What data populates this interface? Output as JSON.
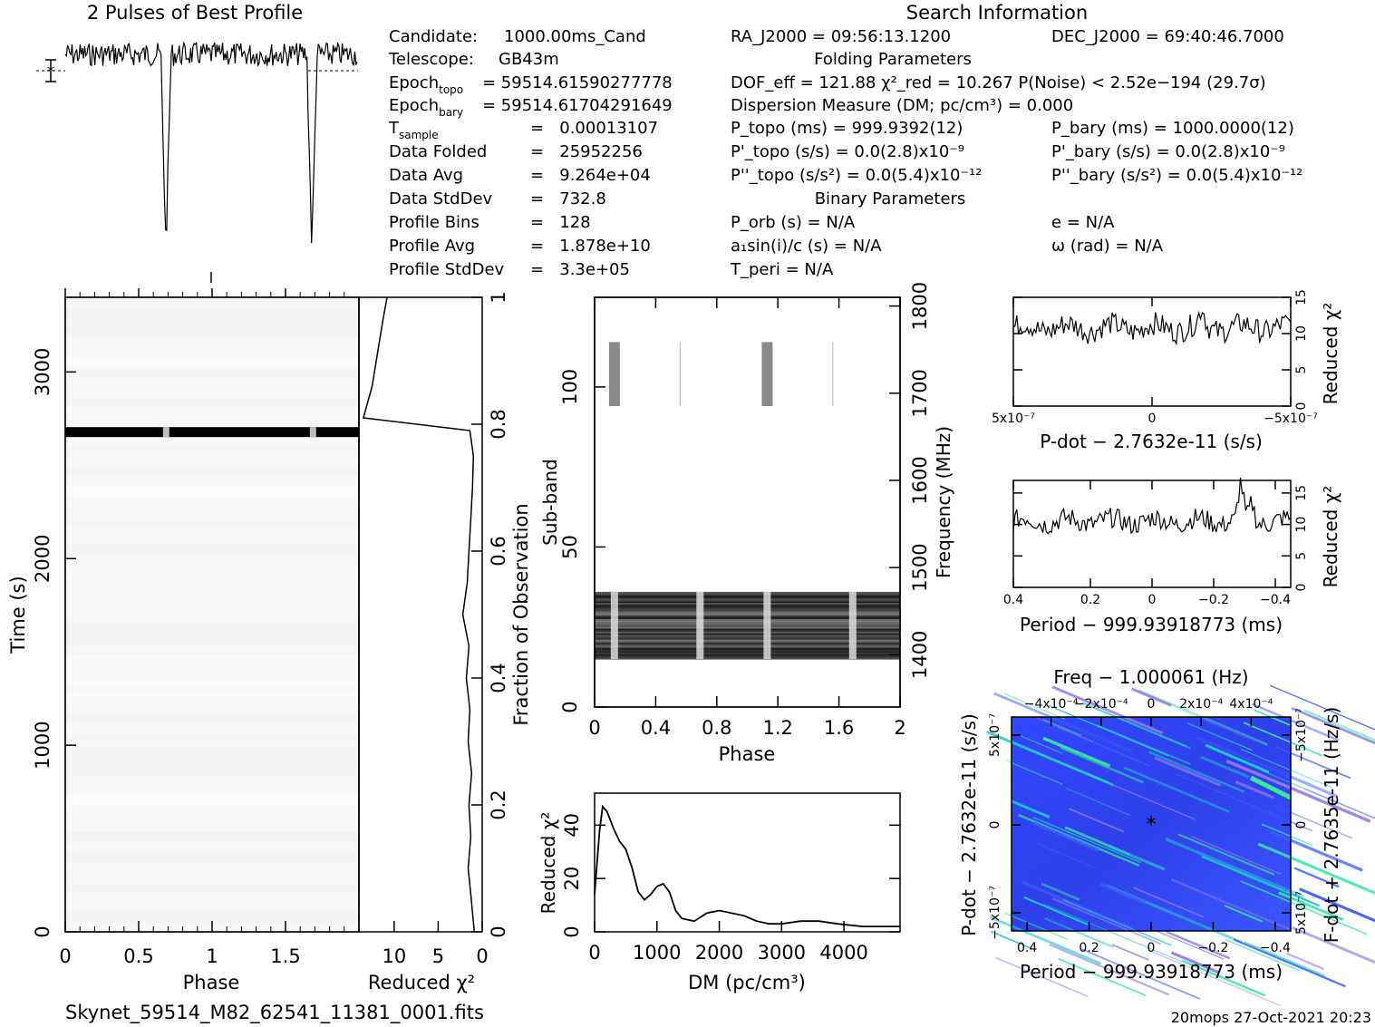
{
  "header": {
    "profile_title": "2 Pulses of Best Profile",
    "search_title": "Search Information",
    "filename": "Skynet_59514_M82_62541_11381_0001.fits",
    "footer": "20mops 27-Oct-2021 20:23"
  },
  "info_left": [
    {
      "label": "Candidate:",
      "value": "1000.00ms_Cand"
    },
    {
      "label": "Telescope:",
      "value": "GB43m"
    },
    {
      "label": "Epoch",
      "sub": "topo",
      "value": "= 59514.61590277778"
    },
    {
      "label": "Epoch",
      "sub": "bary",
      "value": "= 59514.61704291649"
    },
    {
      "label": "T",
      "sub": "sample",
      "value": "=   0.00013107"
    },
    {
      "label": "Data Folded",
      "value": "=   25952256"
    },
    {
      "label": "Data Avg",
      "value": "=   9.264e+04"
    },
    {
      "label": "Data StdDev",
      "value": "=   732.8"
    },
    {
      "label": "Profile Bins",
      "value": "=   128"
    },
    {
      "label": "Profile Avg",
      "value": "=   1.878e+10"
    },
    {
      "label": "Profile StdDev",
      "value": "=   3.3e+05"
    }
  ],
  "info_mid": {
    "ra": "RA_J2000 = 09:56:13.1200",
    "dec": "DEC_J2000 = 69:40:46.7000",
    "folding_title": "Folding Parameters",
    "dof": "DOF_eff = 121.88  χ²_red = 10.267  P(Noise) < 2.52e−194  (29.7σ)",
    "dm": "Dispersion Measure (DM; pc/cm³) = 0.000",
    "ptopo": "P_topo (ms) =  999.9392(12)",
    "pbary": "P_bary (ms) =  1000.0000(12)",
    "pdtopo": "P'_topo (s/s) = 0.0(2.8)x10⁻⁹",
    "pdbary": "P'_bary (s/s) = 0.0(2.8)x10⁻⁹",
    "pddtopo": "P''_topo (s/s²) = 0.0(5.4)x10⁻¹²",
    "pddbary": "P''_bary (s/s²) = 0.0(5.4)x10⁻¹²",
    "binary_title": "Binary Parameters",
    "porb": "P_orb (s) = N/A",
    "e": "e = N/A",
    "a1": "a₁sin(i)/c (s) = N/A",
    "omega": "ω (rad) = N/A",
    "tperi": "T_peri = N/A"
  },
  "chart_data": [
    {
      "type": "line",
      "id": "profile",
      "title": "2 Pulses of Best Profile",
      "xrange": [
        0,
        2
      ],
      "dip_phases": [
        0.69,
        1.69
      ],
      "note": "flat noisy baseline with two deep narrow dips"
    },
    {
      "type": "heatmap",
      "id": "time_phase",
      "xlabel": "Phase",
      "ylabel": "Time (s)",
      "xticks": [
        "0",
        "0.5",
        "1",
        "1.5"
      ],
      "yticks": [
        "0",
        "1000",
        "2000",
        "3000"
      ],
      "xlim": [
        0,
        2
      ],
      "ylim": [
        0,
        3400
      ],
      "bright_band_time": 2680
    },
    {
      "type": "line",
      "id": "time_redchi",
      "xlabel": "Reduced χ²",
      "ylabel": "Fraction of Observation",
      "xticks": [
        "10",
        "5",
        "0"
      ],
      "yticks": [
        "0",
        "0.2",
        "0.4",
        "0.6",
        "0.8",
        "1"
      ],
      "points": [
        [
          0.9,
          0.0
        ],
        [
          1.1,
          0.03
        ],
        [
          1.3,
          0.06
        ],
        [
          1.6,
          0.1
        ],
        [
          1.3,
          0.15
        ],
        [
          1.5,
          0.2
        ],
        [
          1.2,
          0.25
        ],
        [
          1.6,
          0.3
        ],
        [
          1.4,
          0.35
        ],
        [
          1.8,
          0.4
        ],
        [
          1.5,
          0.45
        ],
        [
          2.2,
          0.5
        ],
        [
          1.7,
          0.55
        ],
        [
          1.5,
          0.6
        ],
        [
          1.3,
          0.65
        ],
        [
          1.1,
          0.7
        ],
        [
          1.0,
          0.75
        ],
        [
          1.4,
          0.79
        ],
        [
          13.5,
          0.81
        ],
        [
          12.5,
          0.86
        ],
        [
          11.8,
          0.92
        ],
        [
          11.2,
          0.97
        ],
        [
          10.8,
          1.0
        ]
      ]
    },
    {
      "type": "heatmap",
      "id": "subband_phase",
      "xlabel": "Phase",
      "ylabel": "Sub-band",
      "y2label": "Frequency (MHz)",
      "xticks": [
        "0",
        "0.4",
        "0.8",
        "1.2",
        "1.6",
        "2"
      ],
      "yticks": [
        "0",
        "50",
        "100"
      ],
      "y2ticks": [
        "1400",
        "1500",
        "1600",
        "1700",
        "1800"
      ],
      "xlim": [
        0,
        2
      ],
      "ylim": [
        0,
        128
      ],
      "y2lim": [
        1340,
        1810
      ]
    },
    {
      "type": "line",
      "id": "dm_chi",
      "xlabel": "DM (pc/cm³)",
      "ylabel": "Reduced χ²",
      "xticks": [
        "0",
        "1000",
        "2000",
        "3000",
        "4000"
      ],
      "yticks": [
        "0",
        "20",
        "40"
      ],
      "xlim": [
        0,
        4900
      ],
      "ylim": [
        0,
        52
      ],
      "points": [
        [
          0,
          14
        ],
        [
          80,
          38
        ],
        [
          130,
          47
        ],
        [
          200,
          45
        ],
        [
          300,
          39
        ],
        [
          400,
          34
        ],
        [
          500,
          31
        ],
        [
          600,
          24
        ],
        [
          700,
          15
        ],
        [
          800,
          12
        ],
        [
          900,
          14
        ],
        [
          1000,
          17
        ],
        [
          1100,
          18
        ],
        [
          1200,
          15
        ],
        [
          1300,
          8
        ],
        [
          1400,
          5
        ],
        [
          1600,
          4
        ],
        [
          1800,
          7
        ],
        [
          2000,
          8
        ],
        [
          2200,
          7
        ],
        [
          2400,
          6
        ],
        [
          2600,
          4
        ],
        [
          2800,
          3
        ],
        [
          3000,
          3
        ],
        [
          3300,
          4
        ],
        [
          3600,
          4
        ],
        [
          3900,
          3
        ],
        [
          4300,
          2
        ],
        [
          4900,
          2
        ]
      ]
    },
    {
      "type": "line",
      "id": "pdot_chi",
      "xlabel": "P-dot − 2.7632e-11 (s/s)",
      "ylabel": "Reduced χ²",
      "xticks": [
        "5x10⁻⁷",
        "0",
        "−5x10⁻⁷"
      ],
      "yticks": [
        "0",
        "5",
        "10",
        "15"
      ],
      "ylim": [
        0,
        15
      ]
    },
    {
      "type": "line",
      "id": "period_chi",
      "xlabel": "Period − 999.93918773 (ms)",
      "ylabel": "Reduced χ²",
      "xticks": [
        "0.4",
        "0.2",
        "0",
        "−0.2",
        "−0.4"
      ],
      "yticks": [
        "0",
        "5",
        "10",
        "15"
      ],
      "ylim": [
        0,
        17
      ]
    },
    {
      "type": "heatmap",
      "id": "p_pdot",
      "title": "Freq − 1.000061 (Hz)",
      "xlabel": "Period − 999.93918773 (ms)",
      "ylabel": "P-dot − 2.7632e-11 (s/s)",
      "y2label": "F-dot + 2.7635e-11 (Hz/s)",
      "xticks": [
        "0.4",
        "0.2",
        "0",
        "−0.2",
        "−0.4"
      ],
      "x2ticks": [
        "−4x10⁻⁴",
        "−2x10⁻⁴",
        "0",
        "2x10⁻⁴",
        "4x10⁻⁴"
      ],
      "yticks": [
        "5x10⁻⁷",
        "0",
        "−5x10⁻⁷"
      ],
      "y2ticks": [
        "−5x10⁻⁷",
        "0",
        "5x10⁻⁷"
      ],
      "colors": [
        "#2b3ee6",
        "#3f5bff",
        "#9a7be8",
        "#1ec8d0",
        "#38e8a0"
      ]
    }
  ]
}
